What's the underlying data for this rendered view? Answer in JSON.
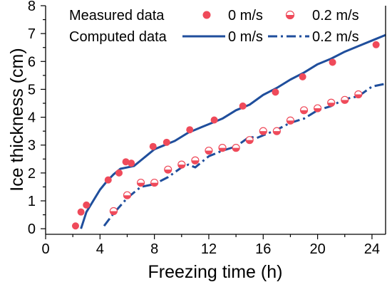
{
  "chart_data": {
    "type": "scatter+line",
    "xlabel": "Freezing time (h)",
    "ylabel": "Ice thickness (cm)",
    "xlim": [
      0,
      25
    ],
    "ylim": [
      -0.2,
      8
    ],
    "xticks": [
      "0",
      "4",
      "8",
      "12",
      "16",
      "20",
      "24"
    ],
    "yticks": [
      "0",
      "1",
      "2",
      "3",
      "4",
      "5",
      "6",
      "7",
      "8"
    ],
    "grid": false,
    "legend": {
      "placement": "top-left",
      "row1_label": "Measured  data",
      "row2_label": "Computed data",
      "col1": "0 m/s",
      "col2": "0.2 m/s"
    },
    "colors": {
      "measured": "#ef4a5a",
      "computed": "#1f4e9c"
    },
    "measured": [
      {
        "name": "0 m/s",
        "marker": "filled-circle",
        "x": [
          2.2,
          2.6,
          3.0,
          4.6,
          5.4,
          5.9,
          6.3,
          7.9,
          8.9,
          10.6,
          12.4,
          14.5,
          16.9,
          18.9,
          21.1,
          24.3
        ],
        "y": [
          0.1,
          0.6,
          0.85,
          1.75,
          2.0,
          2.4,
          2.35,
          2.95,
          3.1,
          3.55,
          3.9,
          4.4,
          4.9,
          5.45,
          5.97,
          6.6
        ]
      },
      {
        "name": "0.2 m/s",
        "marker": "half-filled-circle",
        "x": [
          5.0,
          6.0,
          7.0,
          8.0,
          9.0,
          10.0,
          11.0,
          12.0,
          13.0,
          14.0,
          15.0,
          16.0,
          17.0,
          18.0,
          19.0,
          20.0,
          21.0,
          22.0,
          23.0
        ],
        "y": [
          0.63,
          1.2,
          1.65,
          1.65,
          2.12,
          2.3,
          2.45,
          2.8,
          2.9,
          2.9,
          3.18,
          3.5,
          3.5,
          3.88,
          4.25,
          4.32,
          4.52,
          4.62,
          4.82
        ]
      }
    ],
    "computed": [
      {
        "name": "0 m/s",
        "line_style": "solid",
        "x": [
          2.6,
          3.0,
          3.5,
          4.0,
          4.5,
          5.0,
          5.5,
          6.0,
          6.5,
          7.0,
          7.5,
          8.0,
          8.5,
          9.0,
          9.5,
          10.0,
          10.5,
          11.0,
          11.5,
          12.0,
          12.5,
          13.0,
          14.0,
          15.0,
          16.0,
          17.0,
          18.0,
          19.0,
          20.0,
          21.0,
          22.0,
          23.0,
          24.0,
          25.0
        ],
        "y": [
          0.0,
          0.6,
          1.0,
          1.4,
          1.7,
          1.95,
          2.15,
          2.2,
          2.25,
          2.45,
          2.65,
          2.85,
          2.95,
          3.05,
          3.15,
          3.3,
          3.45,
          3.55,
          3.65,
          3.75,
          3.85,
          3.95,
          4.25,
          4.45,
          4.8,
          5.05,
          5.35,
          5.6,
          5.9,
          6.1,
          6.35,
          6.55,
          6.75,
          6.95
        ]
      },
      {
        "name": "0.2 m/s",
        "line_style": "dash-dot",
        "x": [
          4.3,
          5.0,
          6.0,
          7.0,
          8.0,
          9.0,
          10.0,
          10.5,
          11.0,
          12.0,
          13.0,
          14.0,
          15.0,
          15.5,
          16.0,
          17.0,
          18.0,
          19.0,
          20.0,
          21.0,
          22.0,
          23.0,
          24.0,
          25.0
        ],
        "y": [
          0.1,
          0.55,
          1.1,
          1.5,
          1.6,
          1.85,
          2.2,
          2.3,
          2.2,
          2.6,
          2.8,
          2.95,
          3.3,
          3.25,
          3.35,
          3.55,
          3.8,
          3.95,
          4.25,
          4.4,
          4.65,
          4.75,
          5.1,
          5.2
        ]
      }
    ]
  }
}
